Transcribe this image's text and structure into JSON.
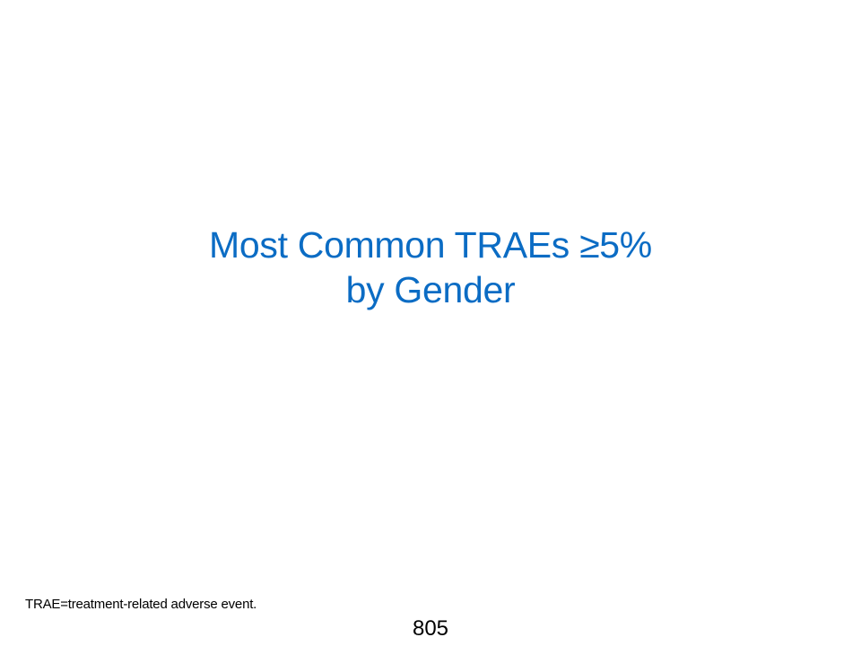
{
  "slide": {
    "title_line_1": "Most Common TRAEs ≥5%",
    "title_line_2": "by Gender",
    "footnote": "TRAE=treatment-related adverse event.",
    "page_number": "805",
    "title_color": "#0b6cc4"
  }
}
